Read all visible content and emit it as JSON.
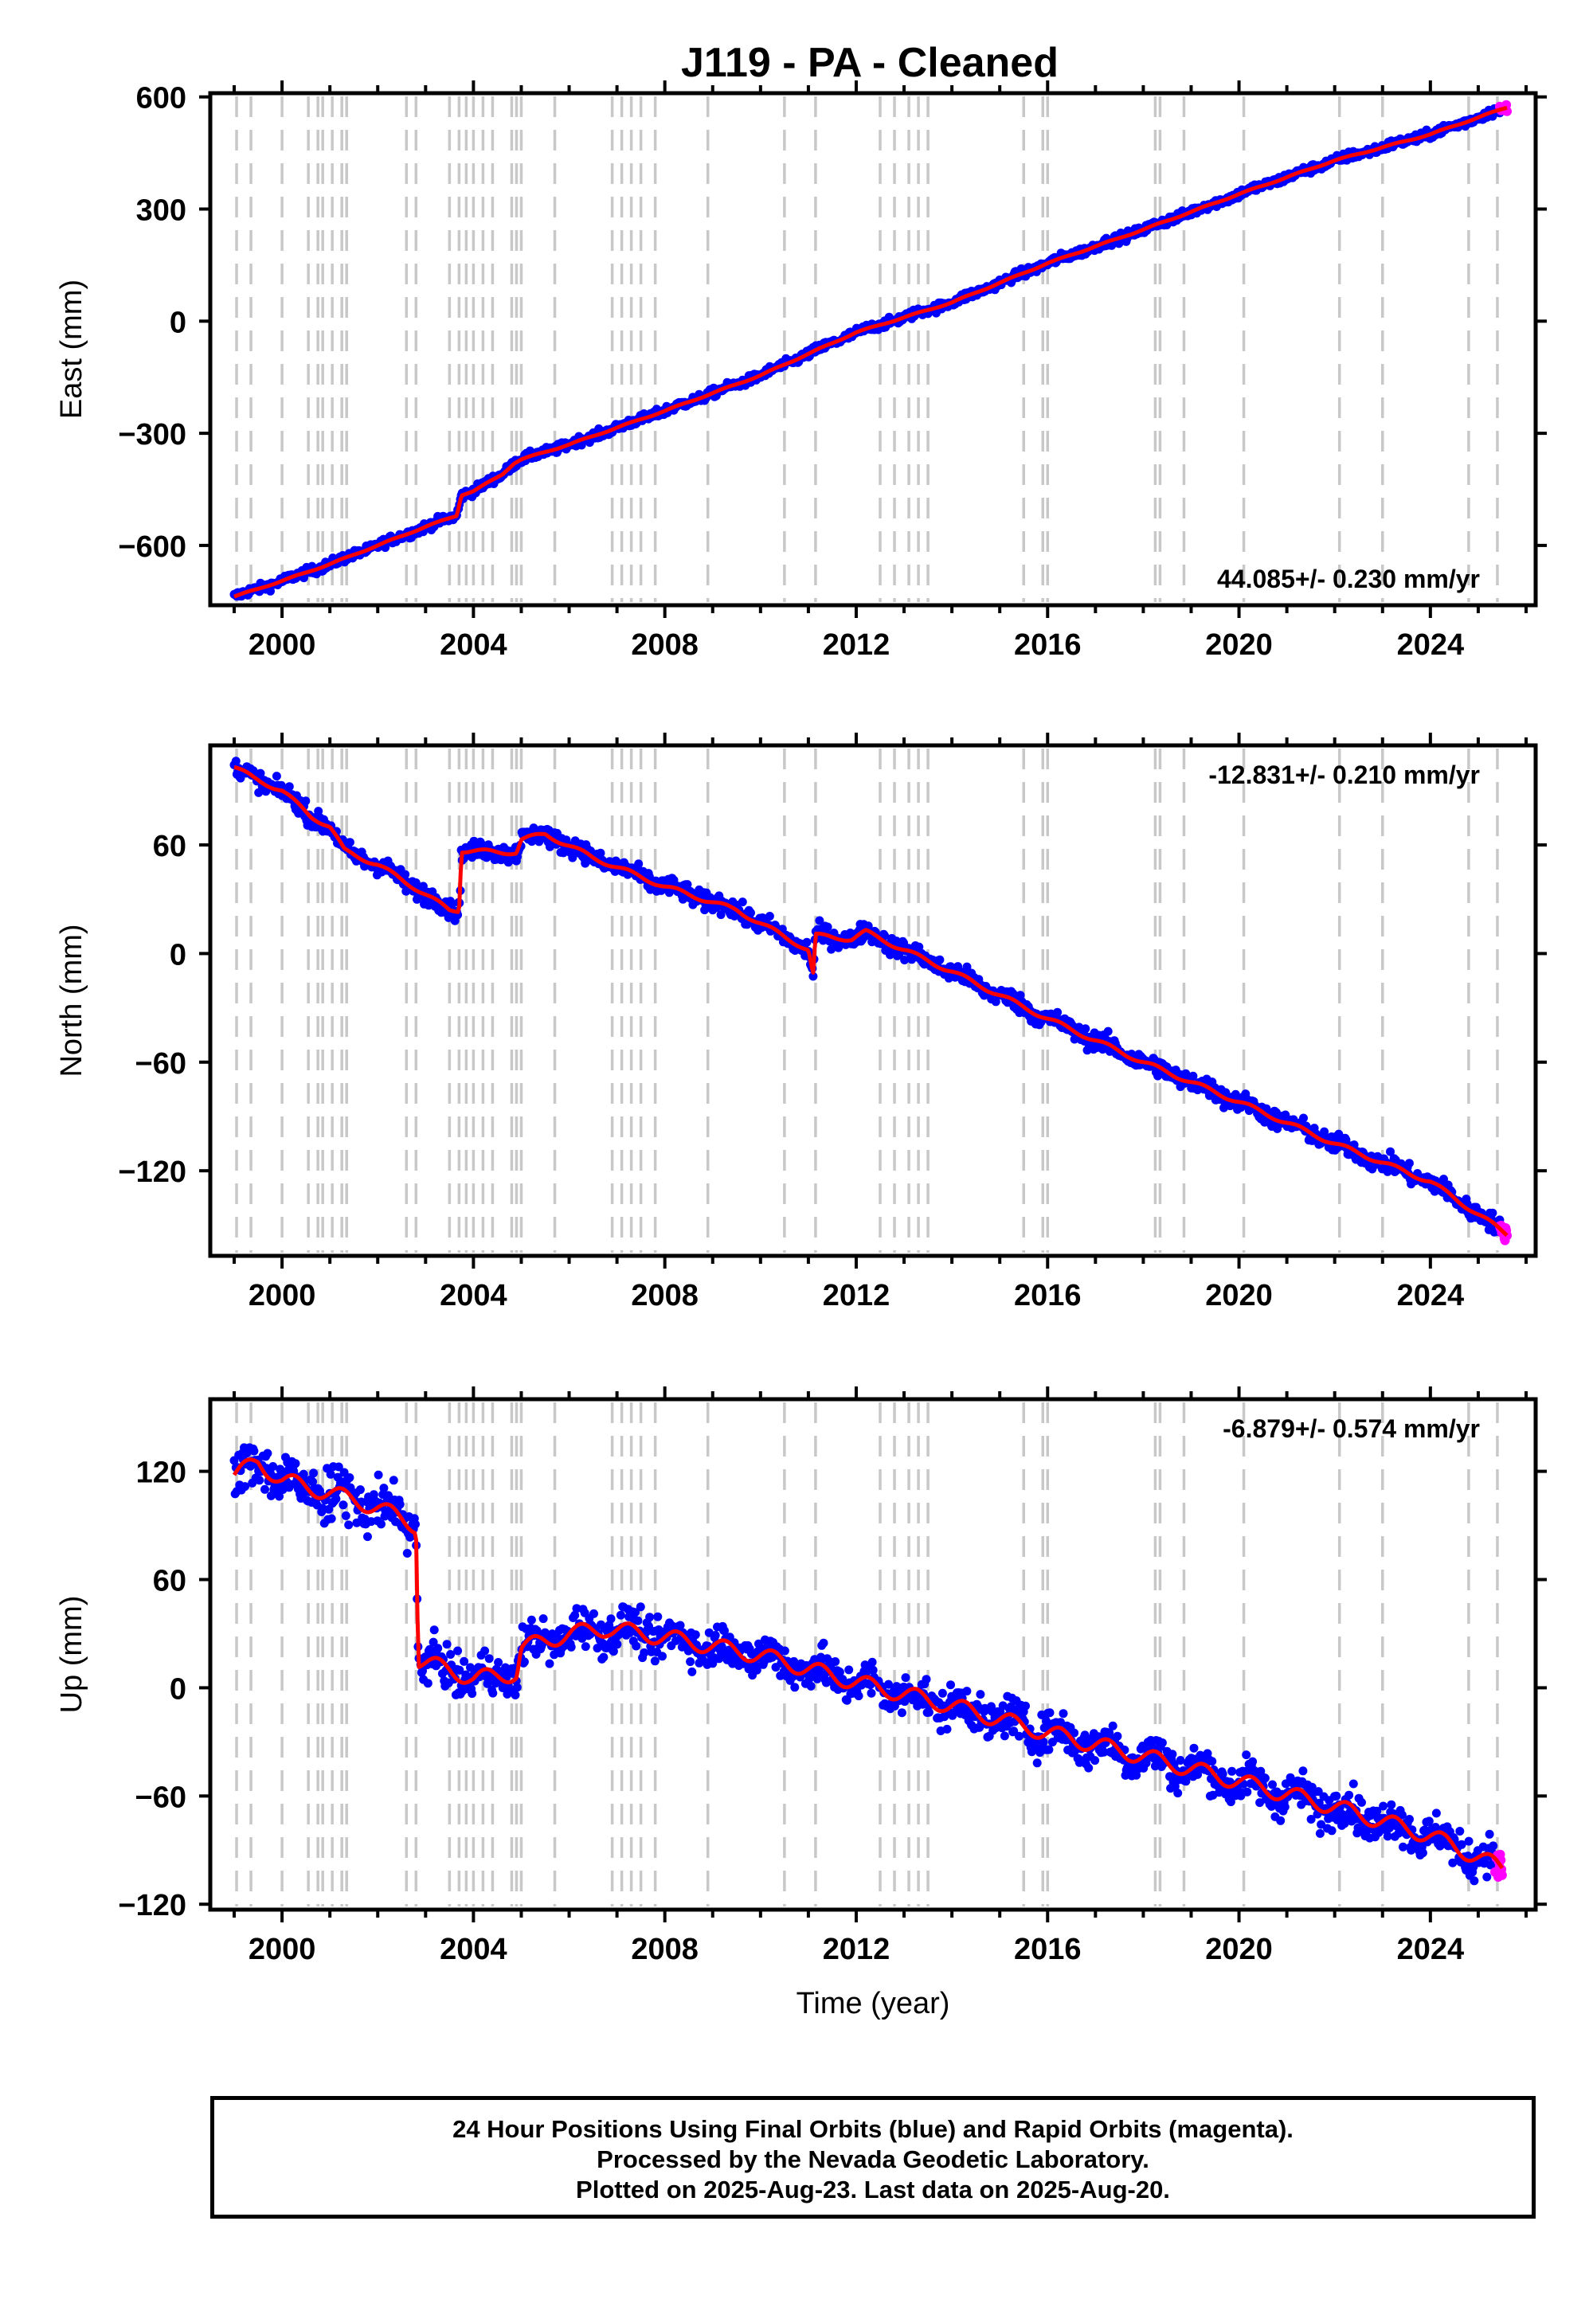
{
  "title": "J119  - PA - Cleaned",
  "footer": {
    "line1": "24 Hour Positions Using Final Orbits (blue) and Rapid Orbits (magenta).",
    "line2": "Processed by the Nevada Geodetic Laboratory.",
    "line3": "Plotted on 2025-Aug-23. Last data on 2025-Aug-20."
  },
  "colors": {
    "final": "#0000ff",
    "rapid": "#ff00ff",
    "model": "#ff0000",
    "events": "#c8c8c8",
    "axes": "#000000"
  },
  "chart_data": [
    {
      "type": "scatter",
      "name": "east",
      "ylabel": "East (mm)",
      "xlabel": "",
      "xlim": [
        1998.5,
        2026.2
      ],
      "ylim": [
        -760,
        610
      ],
      "yticks": [
        -600,
        -300,
        0,
        300,
        600
      ],
      "ytick_labels": [
        "−600",
        "−300",
        "0",
        "300",
        "600"
      ],
      "xticks": [
        2000,
        2004,
        2008,
        2012,
        2016,
        2020,
        2024
      ],
      "rate_label": "44.085+/- 0.230 mm/yr",
      "series": [
        {
          "x": [
            1999.0,
            2000.0,
            2001.0,
            2002.0,
            2003.0,
            2003.65,
            2003.75,
            2004.0,
            2004.6,
            2004.85,
            2005.0,
            2006.0,
            2008.0,
            2010.0,
            2012.0,
            2014.0,
            2016.0,
            2018.0,
            2020.0,
            2022.0,
            2024.0,
            2025.6
          ],
          "y": [
            -737,
            -695,
            -650,
            -600,
            -550,
            -520,
            -465,
            -455,
            -410,
            -380,
            -370,
            -330,
            -240,
            -145,
            -30,
            50,
            155,
            245,
            340,
            430,
            500,
            572
          ]
        }
      ]
    },
    {
      "type": "scatter",
      "name": "north",
      "ylabel": "North (mm)",
      "xlabel": "",
      "xlim": [
        1998.5,
        2026.2
      ],
      "ylim": [
        -167,
        115
      ],
      "yticks": [
        -120,
        -60,
        0,
        60
      ],
      "ytick_labels": [
        "−120",
        "−60",
        "0",
        "60"
      ],
      "xticks": [
        2000,
        2004,
        2008,
        2012,
        2016,
        2020,
        2024
      ],
      "rate_label": "-12.831+/- 0.210 mm/yr",
      "series": [
        {
          "x": [
            1999.0,
            1999.4,
            2000.0,
            2000.6,
            2001.0,
            2001.3,
            2002.0,
            2002.8,
            2003.5,
            2003.7,
            2003.75,
            2004.5,
            2004.9,
            2005.0,
            2005.5,
            2006.5,
            2008.0,
            2009.5,
            2011.0,
            2011.1,
            2011.15,
            2011.9,
            2012.2,
            2013.0,
            2014.0,
            2016.0,
            2018.0,
            2020.0,
            2022.0,
            2024.0,
            2025.6
          ],
          "y": [
            103,
            97,
            90,
            76,
            70,
            57,
            49,
            36,
            24,
            24,
            57,
            56,
            56,
            63,
            66,
            53,
            37,
            24,
            2,
            -12,
            10,
            8,
            12,
            2,
            -10,
            -36,
            -60,
            -82,
            -105,
            -126,
            -155
          ]
        }
      ]
    },
    {
      "type": "scatter",
      "name": "up",
      "ylabel": "Up (mm)",
      "xlabel": "Time (year)",
      "xlim": [
        1998.5,
        2026.2
      ],
      "ylim": [
        -123,
        160
      ],
      "yticks": [
        -120,
        -60,
        0,
        60,
        120
      ],
      "ytick_labels": [
        "−120",
        "−60",
        "0",
        "60",
        "120"
      ],
      "xticks": [
        2000,
        2004,
        2008,
        2012,
        2016,
        2020,
        2024
      ],
      "rate_label": "-6.879+/- 0.574 mm/yr",
      "series": [
        {
          "x": [
            1999.0,
            1999.5,
            2000.0,
            2001.0,
            2002.0,
            2002.8,
            2002.85,
            2003.5,
            2004.0,
            2004.9,
            2005.0,
            2006.0,
            2006.8,
            2008.0,
            2010.0,
            2012.0,
            2014.0,
            2016.0,
            2018.0,
            2020.0,
            2022.0,
            2024.0,
            2025.5
          ],
          "y": [
            118,
            125,
            115,
            108,
            100,
            90,
            15,
            10,
            5,
            8,
            22,
            30,
            33,
            28,
            18,
            3,
            -10,
            -25,
            -38,
            -52,
            -66,
            -82,
            -100
          ]
        }
      ]
    }
  ],
  "event_years": [
    1999.05,
    1999.35,
    2000.0,
    2000.55,
    2000.75,
    2000.85,
    2001.05,
    2001.25,
    2001.35,
    2002.6,
    2002.8,
    2003.5,
    2003.7,
    2003.85,
    2004.0,
    2004.2,
    2004.4,
    2004.8,
    2004.9,
    2005.0,
    2005.7,
    2006.9,
    2007.1,
    2007.3,
    2007.5,
    2007.8,
    2008.9,
    2010.5,
    2011.15,
    2012.5,
    2012.8,
    2013.1,
    2013.3,
    2013.5,
    2015.5,
    2015.9,
    2016.0,
    2018.25,
    2018.35,
    2018.85,
    2020.1,
    2022.1,
    2023.0,
    2024.8,
    2025.4
  ]
}
